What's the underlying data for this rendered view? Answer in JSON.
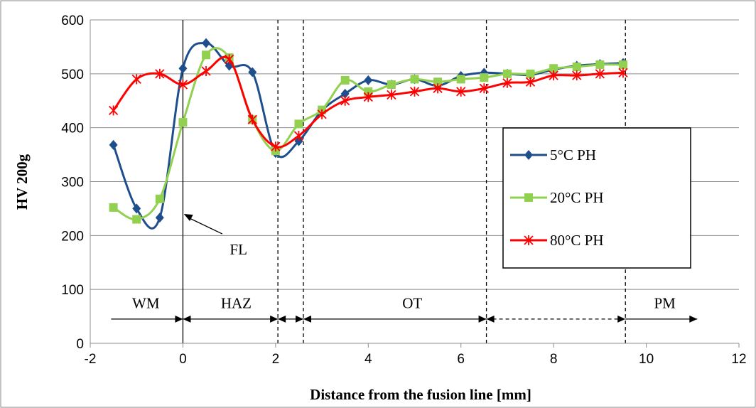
{
  "chart_data": {
    "type": "line",
    "title": "",
    "xlabel": "Distance from the fusion line [mm]",
    "ylabel": "HV 200g",
    "xlim": [
      -2,
      12
    ],
    "ylim": [
      0,
      600
    ],
    "xticks": [
      "-2",
      "0",
      "2",
      "4",
      "6",
      "8",
      "10",
      "12"
    ],
    "yticks": [
      "0",
      "100",
      "200",
      "300",
      "400",
      "500",
      "600"
    ],
    "grid": "horizontal",
    "legend": "middle-right",
    "series": [
      {
        "name": "5°C PH",
        "color": "#1f4e8c",
        "marker": "diamond",
        "points": [
          [
            -1.5,
            368
          ],
          [
            -1,
            250
          ],
          [
            -0.5,
            233
          ],
          [
            0,
            510
          ],
          [
            0.5,
            557
          ],
          [
            1,
            515
          ],
          [
            1.5,
            503
          ],
          [
            2,
            353
          ],
          [
            2.5,
            375
          ],
          [
            3,
            432
          ],
          [
            3.5,
            463
          ],
          [
            4,
            488
          ],
          [
            4.5,
            480
          ],
          [
            5,
            490
          ],
          [
            5.5,
            478
          ],
          [
            6,
            496
          ],
          [
            6.5,
            502
          ],
          [
            7,
            500
          ],
          [
            7.5,
            498
          ],
          [
            8,
            508
          ],
          [
            8.5,
            515
          ],
          [
            9,
            518
          ],
          [
            9.5,
            520
          ]
        ]
      },
      {
        "name": "20°C PH",
        "color": "#92d050",
        "marker": "square",
        "points": [
          [
            -1.5,
            252
          ],
          [
            -1,
            230
          ],
          [
            -0.5,
            268
          ],
          [
            0,
            410
          ],
          [
            0.5,
            535
          ],
          [
            1,
            530
          ],
          [
            1.5,
            415
          ],
          [
            2,
            357
          ],
          [
            2.5,
            407
          ],
          [
            3,
            433
          ],
          [
            3.5,
            488
          ],
          [
            4,
            467
          ],
          [
            4.5,
            480
          ],
          [
            5,
            490
          ],
          [
            5.5,
            485
          ],
          [
            6,
            490
          ],
          [
            6.5,
            493
          ],
          [
            7,
            500
          ],
          [
            7.5,
            500
          ],
          [
            8,
            510
          ],
          [
            8.5,
            513
          ],
          [
            9,
            517
          ],
          [
            9.5,
            517
          ]
        ]
      },
      {
        "name": "80°C PH",
        "color": "#ff0000",
        "marker": "asterisk",
        "points": [
          [
            -1.5,
            432
          ],
          [
            -1,
            490
          ],
          [
            -0.5,
            500
          ],
          [
            0,
            480
          ],
          [
            0.5,
            505
          ],
          [
            1,
            527
          ],
          [
            1.5,
            415
          ],
          [
            2,
            365
          ],
          [
            2.5,
            385
          ],
          [
            3,
            425
          ],
          [
            3.5,
            450
          ],
          [
            4,
            457
          ],
          [
            4.5,
            461
          ],
          [
            5,
            467
          ],
          [
            5.5,
            473
          ],
          [
            6,
            467
          ],
          [
            6.5,
            473
          ],
          [
            7,
            483
          ],
          [
            7.5,
            485
          ],
          [
            8,
            497
          ],
          [
            8.5,
            497
          ],
          [
            9,
            500
          ],
          [
            9.5,
            502
          ]
        ]
      }
    ],
    "vlines": [
      {
        "x": 0,
        "style": "solid"
      },
      {
        "x": 2.05,
        "style": "dashed"
      },
      {
        "x": 2.6,
        "style": "dashed"
      },
      {
        "x": 6.55,
        "style": "dashed"
      },
      {
        "x": 9.55,
        "style": "dashed"
      }
    ],
    "zones": [
      {
        "label": "WM",
        "x_from": -1.55,
        "x_to": 0,
        "label_x": -0.8,
        "arrow": "right"
      },
      {
        "label": "HAZ",
        "x_from": 0,
        "x_to": 2.05,
        "label_x": 1.15,
        "arrow": "both"
      },
      {
        "label": "",
        "x_from": 2.05,
        "x_to": 2.6,
        "label_x": 2.3,
        "arrow": "both"
      },
      {
        "label": "OT",
        "x_from": 2.6,
        "x_to": 6.55,
        "label_x": 4.95,
        "arrow": "both"
      },
      {
        "label": "",
        "x_from": 6.55,
        "x_to": 9.55,
        "label_x": 8,
        "arrow": "both",
        "dashed": true
      },
      {
        "label": "PM",
        "x_from": 9.55,
        "x_to": 11.1,
        "label_x": 10.4,
        "arrow": "right"
      }
    ],
    "zone_arrow_y": 45,
    "zone_label_y": 65,
    "annotations": [
      {
        "text": "FL",
        "text_x": 1.2,
        "text_y": 165,
        "arrow_from": [
          0.85,
          203
        ],
        "arrow_to": [
          0.02,
          240
        ]
      }
    ]
  }
}
